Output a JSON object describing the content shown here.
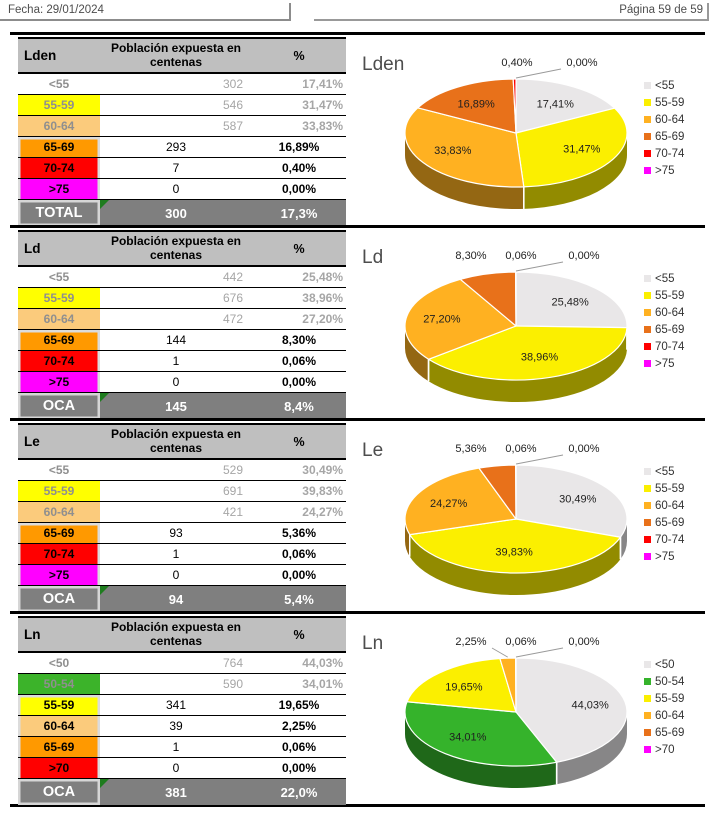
{
  "header": {
    "date_label": "Fecha: 29/01/2024",
    "page_label": "Página 59 de 59"
  },
  "table_shared": {
    "col2_header": "Población expuesta en centenas",
    "col3_header": "%"
  },
  "band_colors": {
    "none": "",
    "yellow": "#FFFF00",
    "tan": "#FBCB7C",
    "orange": "#FF9900",
    "red": "#FF0000",
    "magenta": "#FF00FF",
    "green": "#3CB32A"
  },
  "sections": [
    {
      "indicator": "Lden",
      "rows": [
        {
          "label": "<55",
          "value": "302",
          "pct": "17,41%",
          "band": "none",
          "muted": true
        },
        {
          "label": "55-59",
          "value": "546",
          "pct": "31,47%",
          "band": "yellow",
          "muted": true
        },
        {
          "label": "60-64",
          "value": "587",
          "pct": "33,83%",
          "band": "tan",
          "muted": true
        },
        {
          "label": "65-69",
          "value": "293",
          "pct": "16,89%",
          "band": "orange",
          "muted": false
        },
        {
          "label": "70-74",
          "value": "7",
          "pct": "0,40%",
          "band": "red",
          "muted": false
        },
        {
          "label": ">75",
          "value": "0",
          "pct": "0,00%",
          "band": "magenta",
          "muted": false
        }
      ],
      "total": {
        "label": "TOTAL",
        "value": "300",
        "pct": "17,3%"
      }
    },
    {
      "indicator": "Ld",
      "rows": [
        {
          "label": "<55",
          "value": "442",
          "pct": "25,48%",
          "band": "none",
          "muted": true
        },
        {
          "label": "55-59",
          "value": "676",
          "pct": "38,96%",
          "band": "yellow",
          "muted": true
        },
        {
          "label": "60-64",
          "value": "472",
          "pct": "27,20%",
          "band": "tan",
          "muted": true
        },
        {
          "label": "65-69",
          "value": "144",
          "pct": "8,30%",
          "band": "orange",
          "muted": false
        },
        {
          "label": "70-74",
          "value": "1",
          "pct": "0,06%",
          "band": "red",
          "muted": false
        },
        {
          "label": ">75",
          "value": "0",
          "pct": "0,00%",
          "band": "magenta",
          "muted": false
        }
      ],
      "total": {
        "label": "OCA",
        "value": "145",
        "pct": "8,4%"
      }
    },
    {
      "indicator": "Le",
      "rows": [
        {
          "label": "<55",
          "value": "529",
          "pct": "30,49%",
          "band": "none",
          "muted": true
        },
        {
          "label": "55-59",
          "value": "691",
          "pct": "39,83%",
          "band": "yellow",
          "muted": true
        },
        {
          "label": "60-64",
          "value": "421",
          "pct": "24,27%",
          "band": "tan",
          "muted": true
        },
        {
          "label": "65-69",
          "value": "93",
          "pct": "5,36%",
          "band": "orange",
          "muted": false
        },
        {
          "label": "70-74",
          "value": "1",
          "pct": "0,06%",
          "band": "red",
          "muted": false
        },
        {
          "label": ">75",
          "value": "0",
          "pct": "0,00%",
          "band": "magenta",
          "muted": false
        }
      ],
      "total": {
        "label": "OCA",
        "value": "94",
        "pct": "5,4%"
      }
    },
    {
      "indicator": "Ln",
      "rows": [
        {
          "label": "<50",
          "value": "764",
          "pct": "44,03%",
          "band": "none",
          "muted": true
        },
        {
          "label": "50-54",
          "value": "590",
          "pct": "34,01%",
          "band": "green",
          "muted": true
        },
        {
          "label": "55-59",
          "value": "341",
          "pct": "19,65%",
          "band": "yellow",
          "muted": false
        },
        {
          "label": "60-64",
          "value": "39",
          "pct": "2,25%",
          "band": "tan",
          "muted": false
        },
        {
          "label": "65-69",
          "value": "1",
          "pct": "0,06%",
          "band": "orange",
          "muted": false
        },
        {
          "label": ">70",
          "value": "0",
          "pct": "0,00%",
          "band": "red",
          "muted": false
        }
      ],
      "total": {
        "label": "OCA",
        "value": "381",
        "pct": "22,0%"
      }
    }
  ],
  "chart_data": [
    {
      "type": "pie",
      "title": "Lden",
      "legend_position": "right",
      "labels": [
        "<55",
        "55-59",
        "60-64",
        "65-69",
        "70-74",
        ">75"
      ],
      "values": [
        17.41,
        31.47,
        33.83,
        16.89,
        0.4,
        0.0
      ],
      "data_labels": [
        "17,41%",
        "31,47%",
        "33,83%",
        "16,89%",
        "0,40%",
        "0,00%"
      ],
      "colors": [
        "#E9E7E8",
        "#FBEF00",
        "#FFB121",
        "#E8711A",
        "#FF0000",
        "#FF00FF"
      ]
    },
    {
      "type": "pie",
      "title": "Ld",
      "legend_position": "right",
      "labels": [
        "<55",
        "55-59",
        "60-64",
        "65-69",
        "70-74",
        ">75"
      ],
      "values": [
        25.48,
        38.96,
        27.2,
        8.3,
        0.06,
        0.0
      ],
      "data_labels": [
        "25,48%",
        "38,96%",
        "27,20%",
        "8,30%",
        "0,06%",
        "0,00%"
      ],
      "colors": [
        "#E9E7E8",
        "#FBEF00",
        "#FFB121",
        "#E8711A",
        "#FF0000",
        "#FF00FF"
      ]
    },
    {
      "type": "pie",
      "title": "Le",
      "legend_position": "right",
      "labels": [
        "<55",
        "55-59",
        "60-64",
        "65-69",
        "70-74",
        ">75"
      ],
      "values": [
        30.49,
        39.83,
        24.27,
        5.36,
        0.06,
        0.0
      ],
      "data_labels": [
        "30,49%",
        "39,83%",
        "24,27%",
        "5,36%",
        "0,06%",
        "0,00%"
      ],
      "colors": [
        "#E9E7E8",
        "#FBEF00",
        "#FFB121",
        "#E8711A",
        "#FF0000",
        "#FF00FF"
      ]
    },
    {
      "type": "pie",
      "title": "Ln",
      "legend_position": "right",
      "labels": [
        "<50",
        "50-54",
        "55-59",
        "60-64",
        "65-69",
        ">70"
      ],
      "values": [
        44.03,
        34.01,
        19.65,
        2.25,
        0.06,
        0.0
      ],
      "data_labels": [
        "44,03%",
        "34,01%",
        "19,65%",
        "2,25%",
        "0,06%",
        "0,00%"
      ],
      "colors": [
        "#E9E7E8",
        "#35B32B",
        "#FBEF00",
        "#FFB121",
        "#E8711A",
        "#FF00FF"
      ]
    }
  ]
}
